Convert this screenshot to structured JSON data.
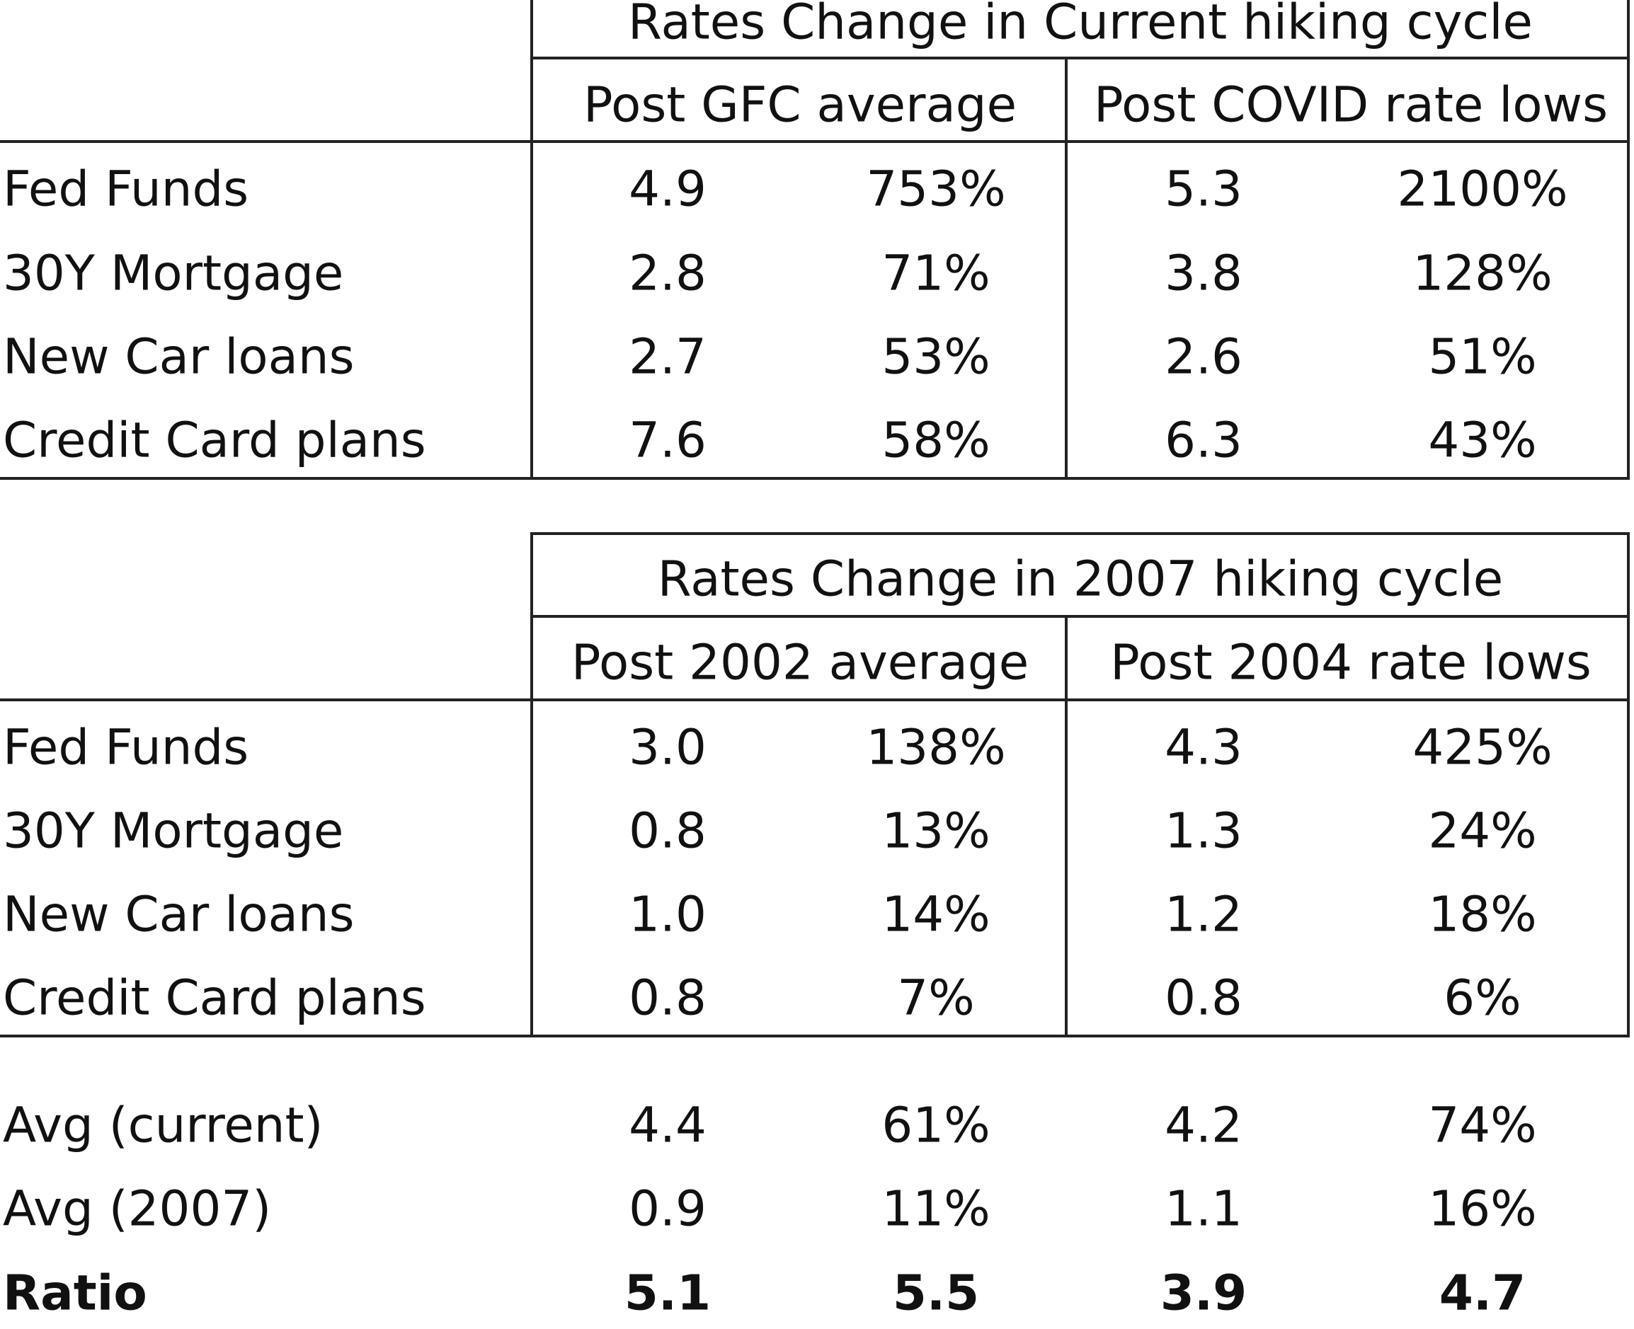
{
  "table1": {
    "title": "Rates Change in Current hiking cycle",
    "col_group1": "Post GFC average",
    "col_group2": "Post COVID rate lows",
    "rows": [
      {
        "label": "Fed Funds",
        "v1": "4.9",
        "p1": "753%",
        "v2": "5.3",
        "p2": "2100%"
      },
      {
        "label": "30Y Mortgage",
        "v1": "2.8",
        "p1": "71%",
        "v2": "3.8",
        "p2": "128%"
      },
      {
        "label": "New Car loans",
        "v1": "2.7",
        "p1": "53%",
        "v2": "2.6",
        "p2": "51%"
      },
      {
        "label": "Credit Card plans",
        "v1": "7.6",
        "p1": "58%",
        "v2": "6.3",
        "p2": "43%"
      }
    ]
  },
  "table2": {
    "title": "Rates Change in 2007 hiking cycle",
    "col_group1": "Post 2002 average",
    "col_group2": "Post 2004 rate lows",
    "rows": [
      {
        "label": "Fed Funds",
        "v1": "3.0",
        "p1": "138%",
        "v2": "4.3",
        "p2": "425%"
      },
      {
        "label": "30Y Mortgage",
        "v1": "0.8",
        "p1": "13%",
        "v2": "1.3",
        "p2": "24%"
      },
      {
        "label": "New Car loans",
        "v1": "1.0",
        "p1": "14%",
        "v2": "1.2",
        "p2": "18%"
      },
      {
        "label": "Credit Card plans",
        "v1": "0.8",
        "p1": "7%",
        "v2": "0.8",
        "p2": "6%"
      }
    ]
  },
  "summary": {
    "rows": [
      {
        "label": "Avg (current)",
        "v1": "4.4",
        "p1": "61%",
        "v2": "4.2",
        "p2": "74%",
        "bold": false
      },
      {
        "label": "Avg (2007)",
        "v1": "0.9",
        "p1": "11%",
        "v2": "1.1",
        "p2": "16%",
        "bold": false
      },
      {
        "label": "Ratio",
        "v1": "5.1",
        "p1": "5.5",
        "v2": "3.9",
        "p2": "4.7",
        "bold": true
      }
    ]
  }
}
